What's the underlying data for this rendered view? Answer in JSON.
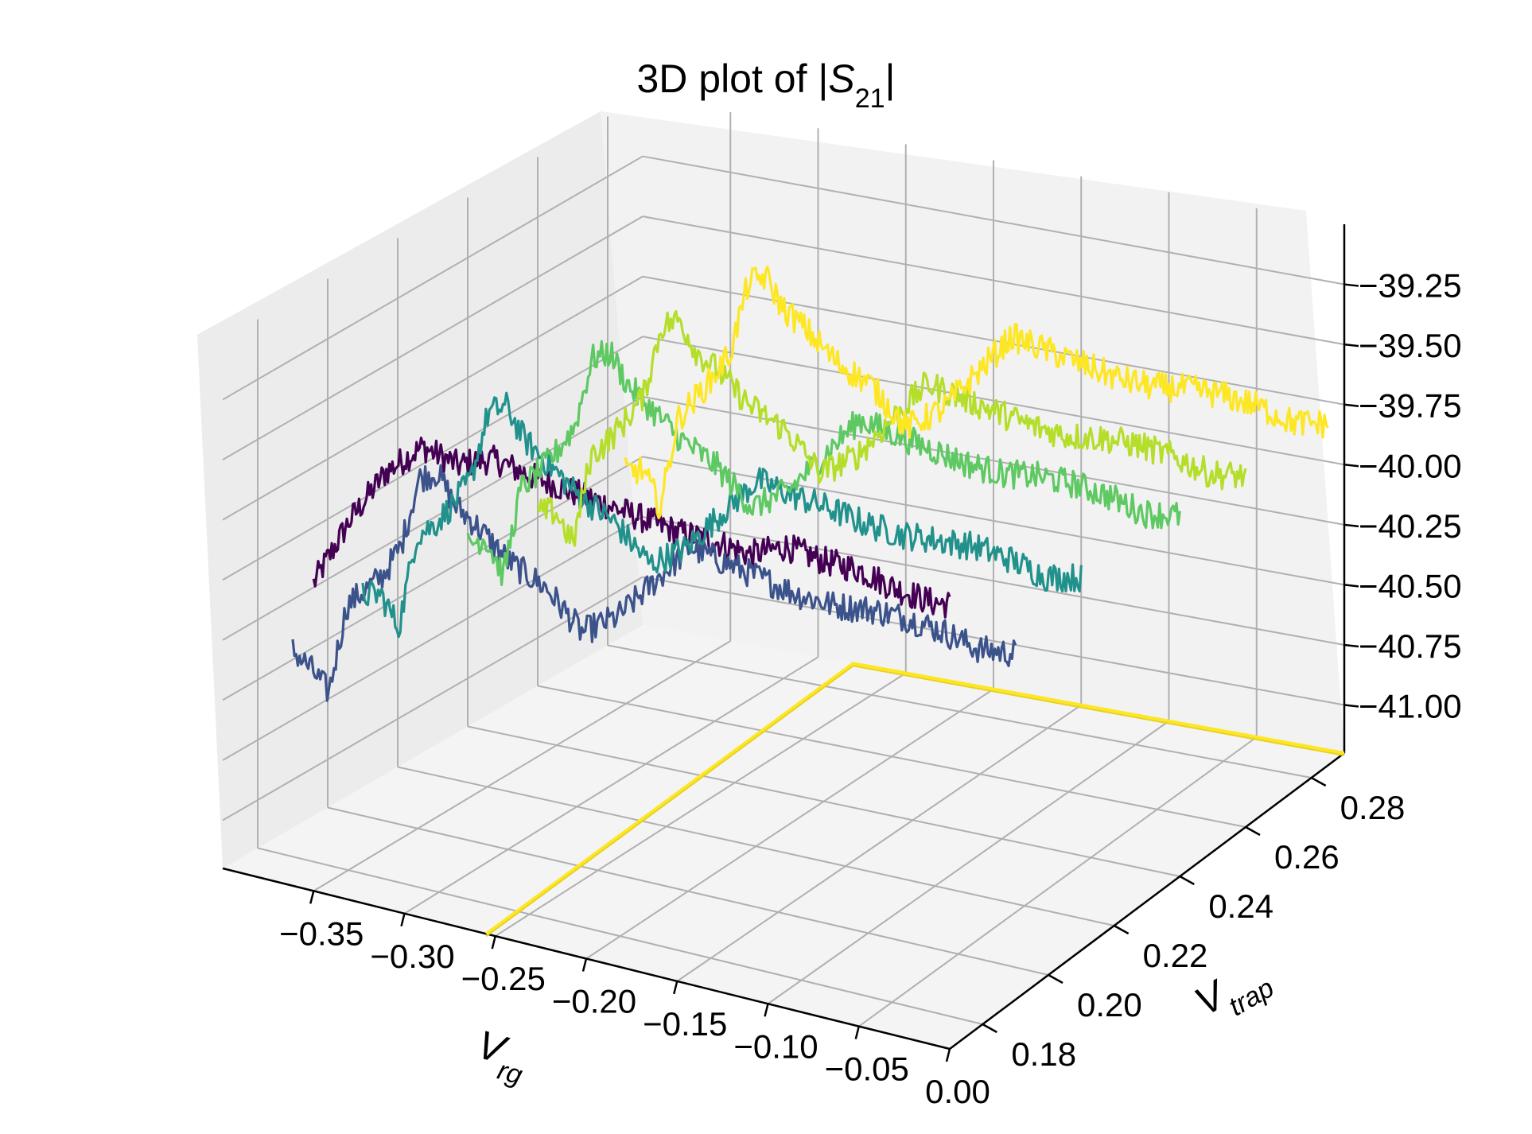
{
  "chart_data": {
    "type": "line",
    "title": "3D plot of |S21|",
    "title_parts": {
      "prefix": "3D plot of |",
      "symbol": "S",
      "subscript": "21",
      "suffix": "|"
    },
    "xlabel": {
      "symbol": "V",
      "subscript": "rg"
    },
    "ylabel": {
      "symbol": "V",
      "subscript": "trap"
    },
    "x_ticks": [
      -0.35,
      -0.3,
      -0.25,
      -0.2,
      -0.15,
      -0.1,
      -0.05,
      0.0
    ],
    "x_tick_labels": [
      "−0.35",
      "−0.30",
      "−0.25",
      "−0.20",
      "−0.15",
      "−0.10",
      "−0.05",
      "0.00"
    ],
    "y_ticks": [
      0.18,
      0.2,
      0.22,
      0.24,
      0.26,
      0.28
    ],
    "y_tick_labels": [
      "0.18",
      "0.20",
      "0.22",
      "0.24",
      "0.26",
      "0.28"
    ],
    "z_ticks": [
      -41.0,
      -40.75,
      -40.5,
      -40.25,
      -40.0,
      -39.75,
      -39.5,
      -39.25
    ],
    "z_tick_labels": [
      "−41.00",
      "−40.75",
      "−40.50",
      "−40.25",
      "−40.00",
      "−39.75",
      "−39.50",
      "−39.25"
    ],
    "xlim": [
      -0.4,
      0.0
    ],
    "ylim": [
      0.17,
      0.29
    ],
    "zlim": [
      -41.2,
      -39.0
    ],
    "grid": true,
    "colormap": "viridis",
    "panes": {
      "fill": "#f2f2f2",
      "grid": "#b0b0b0"
    },
    "series": [
      {
        "color": "#440154",
        "trap": 0.17,
        "rg": [
          -0.35,
          -0.33,
          -0.31,
          -0.29,
          -0.27,
          -0.26,
          -0.25,
          -0.23,
          -0.21,
          -0.19,
          -0.17,
          -0.15,
          -0.13,
          -0.11,
          -0.09,
          -0.07,
          -0.05,
          -0.03,
          -0.01,
          0.0
        ],
        "s21": [
          -39.92,
          -39.62,
          -39.38,
          -39.24,
          -39.28,
          -39.24,
          -39.22,
          -39.25,
          -39.27,
          -39.29,
          -39.31,
          -39.33,
          -39.33,
          -39.35,
          -39.28,
          -39.3,
          -39.3,
          -39.34,
          -39.36,
          -39.35
        ]
      },
      {
        "color": "#3b528b",
        "trap": 0.19,
        "rg": [
          -0.4,
          -0.39,
          -0.38,
          -0.37,
          -0.36,
          -0.35,
          -0.34,
          -0.33,
          -0.32,
          -0.31,
          -0.3,
          -0.28,
          -0.26,
          -0.24,
          -0.22,
          -0.2,
          -0.18,
          -0.16,
          -0.14,
          -0.12,
          -0.1,
          -0.08,
          -0.06,
          -0.04,
          -0.02,
          0.0
        ],
        "s21": [
          -40.46,
          -40.52,
          -40.6,
          -40.22,
          -40.14,
          -40.06,
          -39.92,
          -39.62,
          -39.58,
          -39.7,
          -39.75,
          -39.88,
          -39.95,
          -40.1,
          -40.0,
          -39.82,
          -39.64,
          -39.67,
          -39.7,
          -39.73,
          -39.74,
          -39.72,
          -39.72,
          -39.74,
          -39.78,
          -39.76
        ]
      },
      {
        "color": "#21918c",
        "trap": 0.21,
        "rg": [
          -0.4,
          -0.39,
          -0.38,
          -0.37,
          -0.36,
          -0.35,
          -0.34,
          -0.33,
          -0.32,
          -0.31,
          -0.3,
          -0.28,
          -0.26,
          -0.24,
          -0.22,
          -0.2,
          -0.18,
          -0.16,
          -0.14,
          -0.12,
          -0.1,
          -0.08,
          -0.06,
          -0.04,
          -0.02,
          0.0
        ],
        "s21": [
          -40.4,
          -40.38,
          -40.5,
          -40.1,
          -40.04,
          -39.94,
          -39.82,
          -39.52,
          -39.48,
          -39.6,
          -39.66,
          -39.78,
          -39.86,
          -40.0,
          -39.9,
          -39.72,
          -39.55,
          -39.58,
          -39.6,
          -39.63,
          -39.64,
          -39.63,
          -39.62,
          -39.64,
          -39.68,
          -39.65
        ]
      },
      {
        "color": "#5ec962",
        "trap": 0.24,
        "rg": [
          -0.4,
          -0.39,
          -0.38,
          -0.37,
          -0.36,
          -0.35,
          -0.34,
          -0.33,
          -0.32,
          -0.31,
          -0.3,
          -0.28,
          -0.26,
          -0.24,
          -0.22,
          -0.2,
          -0.18,
          -0.16,
          -0.14,
          -0.12,
          -0.1,
          -0.08,
          -0.06,
          -0.04,
          -0.02,
          0.0
        ],
        "s21": [
          -40.44,
          -40.4,
          -40.54,
          -40.16,
          -40.08,
          -39.98,
          -39.86,
          -39.56,
          -39.52,
          -39.64,
          -39.7,
          -39.82,
          -39.9,
          -40.04,
          -39.94,
          -39.76,
          -39.58,
          -39.61,
          -39.64,
          -39.67,
          -39.68,
          -39.66,
          -39.66,
          -39.68,
          -39.72,
          -39.7
        ]
      },
      {
        "color": "#b5de2b",
        "trap": 0.26,
        "rg": [
          -0.4,
          -0.39,
          -0.38,
          -0.37,
          -0.36,
          -0.35,
          -0.34,
          -0.33,
          -0.32,
          -0.31,
          -0.3,
          -0.28,
          -0.26,
          -0.24,
          -0.22,
          -0.2,
          -0.18,
          -0.16,
          -0.14,
          -0.12,
          -0.1,
          -0.08,
          -0.06,
          -0.04,
          -0.02,
          0.0
        ],
        "s21": [
          -40.48,
          -40.46,
          -40.58,
          -40.2,
          -40.12,
          -40.02,
          -39.9,
          -39.6,
          -39.56,
          -39.68,
          -39.73,
          -39.86,
          -39.93,
          -40.08,
          -39.98,
          -39.8,
          -39.62,
          -39.65,
          -39.68,
          -39.71,
          -39.72,
          -39.7,
          -39.7,
          -39.72,
          -39.76,
          -39.74
        ]
      },
      {
        "color": "#fde725",
        "trap": 0.285,
        "rg": [
          -0.4,
          -0.39,
          -0.38,
          -0.37,
          -0.36,
          -0.35,
          -0.34,
          -0.33,
          -0.32,
          -0.31,
          -0.3,
          -0.28,
          -0.26,
          -0.24,
          -0.22,
          -0.2,
          -0.18,
          -0.16,
          -0.14,
          -0.12,
          -0.1,
          -0.08,
          -0.06,
          -0.04,
          -0.02,
          0.0
        ],
        "s21": [
          -40.52,
          -40.5,
          -40.64,
          -40.26,
          -40.16,
          -40.06,
          -39.94,
          -39.64,
          -39.6,
          -39.72,
          -39.77,
          -39.9,
          -39.97,
          -40.12,
          -40.02,
          -39.84,
          -39.66,
          -39.69,
          -39.72,
          -39.75,
          -39.76,
          -39.74,
          -39.74,
          -39.76,
          -39.8,
          -39.78
        ]
      }
    ],
    "floor_projection": {
      "color": "#fde725",
      "s21": -41.2,
      "points": [
        [
          -0.255,
          0.17
        ],
        [
          -0.28,
          0.29
        ],
        [
          0.0,
          0.29
        ]
      ]
    }
  }
}
